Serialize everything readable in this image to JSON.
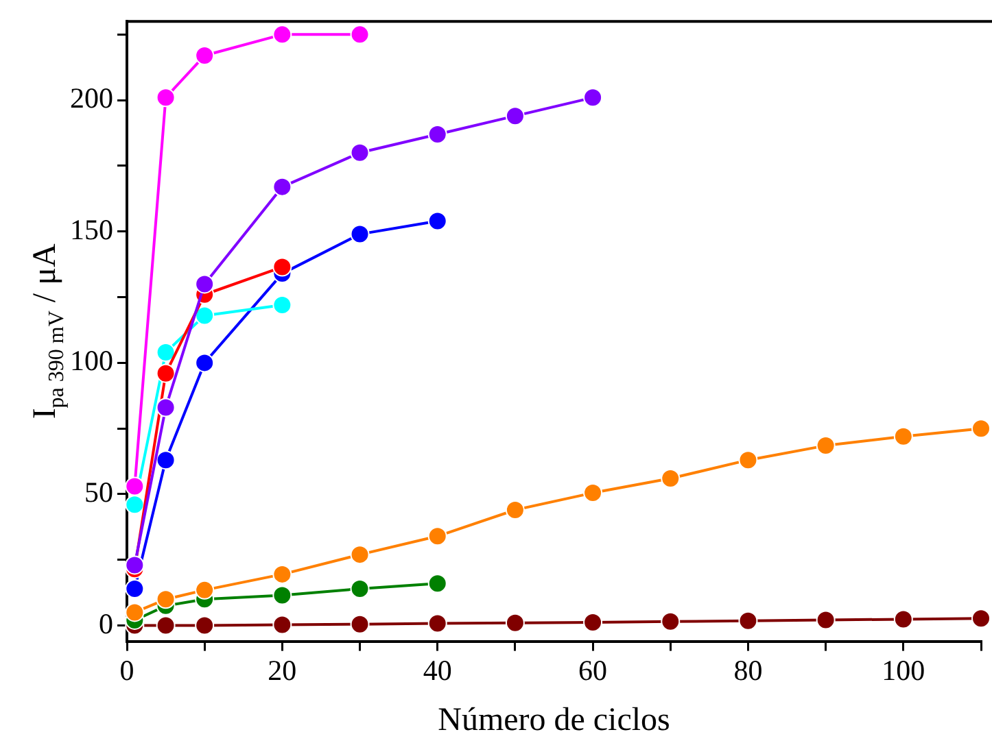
{
  "chart_data": {
    "type": "line",
    "xlabel": "Número de ciclos",
    "ylabel": "I$_{pa 390 mV}$ / μA",
    "xlim": [
      0,
      110
    ],
    "ylim": [
      -6,
      230
    ],
    "xticks": [
      0,
      {
        "value": 10,
        "label": null
      },
      20,
      {
        "value": 30,
        "label": null
      },
      40,
      {
        "value": 50,
        "label": null
      },
      60,
      {
        "value": 70,
        "label": null
      },
      80,
      {
        "value": 90,
        "label": null
      },
      100,
      {
        "value": 110,
        "label": null
      }
    ],
    "yticks": [
      0,
      {
        "value": 25,
        "label": null
      },
      50,
      {
        "value": 75,
        "label": null
      },
      100,
      {
        "value": 125,
        "label": null
      },
      150,
      {
        "value": 175,
        "label": null
      },
      200,
      {
        "value": 225,
        "label": null
      }
    ],
    "marker": "circle",
    "line_style": "solid",
    "legend": false,
    "series": [
      {
        "color": "#ff00ff",
        "x": [
          1,
          5,
          10,
          20,
          30
        ],
        "values": [
          53,
          201,
          217,
          225,
          225
        ]
      },
      {
        "color": "#8000ff",
        "x": [
          1,
          5,
          10,
          20,
          30,
          40,
          50,
          60
        ],
        "values": [
          23,
          83,
          130,
          167,
          180,
          187,
          194,
          201
        ]
      },
      {
        "color": "#ff0000",
        "x": [
          1,
          5,
          10,
          20
        ],
        "values": [
          21.5,
          96,
          126,
          136.5
        ]
      },
      {
        "color": "#00ffff",
        "x": [
          1,
          5,
          10,
          20
        ],
        "values": [
          46,
          104,
          118,
          122
        ]
      },
      {
        "color": "#0000ff",
        "x": [
          1,
          5,
          10,
          20,
          30,
          40
        ],
        "values": [
          14,
          63,
          100,
          134,
          149,
          154
        ]
      },
      {
        "color": "#ff8000",
        "x": [
          1,
          5,
          10,
          20,
          30,
          40,
          50,
          60,
          70,
          80,
          90,
          100,
          110
        ],
        "values": [
          5,
          10,
          13.5,
          19.5,
          27,
          34,
          44,
          50.5,
          56,
          63,
          68.5,
          72,
          75
        ]
      },
      {
        "color": "#008000",
        "x": [
          1,
          5,
          10,
          20,
          30,
          40
        ],
        "values": [
          2,
          7.5,
          10,
          11.5,
          14,
          16
        ]
      },
      {
        "color": "#800000",
        "x": [
          1,
          5,
          10,
          20,
          30,
          40,
          50,
          60,
          70,
          80,
          90,
          100,
          110
        ],
        "values": [
          0,
          0,
          0,
          0.3,
          0.5,
          0.8,
          1,
          1.2,
          1.5,
          1.8,
          2.1,
          2.4,
          2.7
        ]
      }
    ]
  }
}
